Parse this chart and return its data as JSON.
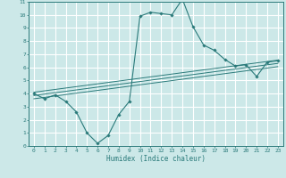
{
  "xlabel": "Humidex (Indice chaleur)",
  "bg_color": "#cce8e8",
  "grid_color": "#aad4d4",
  "line_color": "#2a7a7a",
  "xlim": [
    -0.5,
    23.5
  ],
  "ylim": [
    0,
    11
  ],
  "x_ticks": [
    0,
    1,
    2,
    3,
    4,
    5,
    6,
    7,
    8,
    9,
    10,
    11,
    12,
    13,
    14,
    15,
    16,
    17,
    18,
    19,
    20,
    21,
    22,
    23
  ],
  "y_ticks": [
    0,
    1,
    2,
    3,
    4,
    5,
    6,
    7,
    8,
    9,
    10,
    11
  ],
  "main_x": [
    0,
    1,
    2,
    3,
    4,
    5,
    6,
    7,
    8,
    9,
    10,
    11,
    12,
    13,
    14,
    15,
    16,
    17,
    18,
    19,
    20,
    21,
    22,
    23
  ],
  "main_y": [
    4.0,
    3.6,
    3.9,
    3.4,
    2.6,
    1.0,
    0.2,
    0.8,
    2.4,
    3.4,
    9.9,
    10.2,
    10.1,
    10.0,
    11.2,
    9.1,
    7.7,
    7.3,
    6.6,
    6.1,
    6.2,
    5.3,
    6.4,
    6.5
  ],
  "line1_x": [
    0,
    23
  ],
  "line1_y": [
    4.1,
    6.55
  ],
  "line2_x": [
    0,
    23
  ],
  "line2_y": [
    3.85,
    6.3
  ],
  "line3_x": [
    0,
    23
  ],
  "line3_y": [
    3.6,
    6.05
  ]
}
